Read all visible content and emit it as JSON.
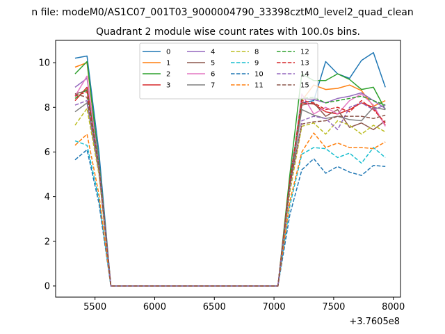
{
  "chart_data": {
    "type": "line",
    "suptitle": "n file: modeM0/AS1C07_001T03_9000004790_33398cztM0_level2_quad_clean",
    "title": "Quadrant 2 module wise count rates with 100.0s bins.",
    "xlabel": "",
    "ylabel": "",
    "offset_text": "+3.7605e8",
    "xlim": [
      5170,
      8060
    ],
    "ylim": [
      -0.5,
      11
    ],
    "x_ticks": [
      5500,
      6000,
      6500,
      7000,
      7500,
      8000
    ],
    "x_tick_labels": [
      "5500",
      "6000",
      "6500",
      "7000",
      "7500",
      "8000"
    ],
    "y_ticks": [
      0,
      2,
      4,
      6,
      8,
      10
    ],
    "y_tick_labels": [
      "0",
      "2",
      "4",
      "6",
      "8",
      "10"
    ],
    "grid": false,
    "legend_position": "upper center",
    "x": [
      5333,
      5433,
      5533,
      5633,
      5733,
      5833,
      5933,
      6033,
      6133,
      6233,
      6333,
      6433,
      6533,
      6633,
      6733,
      6833,
      6933,
      7033,
      7133,
      7233,
      7333,
      7433,
      7533,
      7633,
      7733,
      7833,
      7933
    ],
    "series": [
      {
        "name": "0",
        "color": "#1f77b4",
        "dash": "solid",
        "values": [
          10.2,
          10.3,
          6.0,
          0,
          0,
          0,
          0,
          0,
          0,
          0,
          0,
          0,
          0,
          0,
          0,
          0,
          0,
          0,
          4.8,
          8.2,
          8.3,
          10.05,
          9.5,
          9.3,
          10.1,
          10.45,
          8.9
        ]
      },
      {
        "name": "1",
        "color": "#ff7f0e",
        "dash": "solid",
        "values": [
          9.8,
          10.0,
          5.5,
          0,
          0,
          0,
          0,
          0,
          0,
          0,
          0,
          0,
          0,
          0,
          0,
          0,
          0,
          0,
          4.6,
          8.3,
          9.0,
          8.8,
          8.85,
          9.0,
          8.75,
          8.05,
          8.3
        ]
      },
      {
        "name": "2",
        "color": "#2ca02c",
        "dash": "solid",
        "values": [
          9.5,
          10.05,
          5.6,
          0,
          0,
          0,
          0,
          0,
          0,
          0,
          0,
          0,
          0,
          0,
          0,
          0,
          0,
          0,
          5.0,
          9.5,
          9.2,
          9.2,
          9.5,
          9.25,
          8.8,
          8.9,
          7.9
        ]
      },
      {
        "name": "3",
        "color": "#d62728",
        "dash": "solid",
        "values": [
          8.3,
          8.9,
          5.4,
          0,
          0,
          0,
          0,
          0,
          0,
          0,
          0,
          0,
          0,
          0,
          0,
          0,
          0,
          0,
          4.7,
          8.2,
          8.15,
          7.8,
          7.7,
          7.9,
          8.2,
          8.0,
          7.2
        ]
      },
      {
        "name": "4",
        "color": "#9467bd",
        "dash": "solid",
        "values": [
          8.9,
          9.3,
          5.5,
          0,
          0,
          0,
          0,
          0,
          0,
          0,
          0,
          0,
          0,
          0,
          0,
          0,
          0,
          0,
          4.6,
          8.4,
          8.35,
          8.2,
          8.4,
          8.5,
          8.65,
          8.3,
          7.95
        ]
      },
      {
        "name": "5",
        "color": "#8c564b",
        "dash": "solid",
        "values": [
          8.6,
          8.75,
          5.4,
          0,
          0,
          0,
          0,
          0,
          0,
          0,
          0,
          0,
          0,
          0,
          0,
          0,
          0,
          0,
          4.6,
          8.1,
          8.2,
          7.6,
          7.9,
          7.1,
          7.3,
          7.0,
          7.4
        ]
      },
      {
        "name": "6",
        "color": "#e377c2",
        "dash": "solid",
        "values": [
          8.5,
          9.4,
          5.3,
          0,
          0,
          0,
          0,
          0,
          0,
          0,
          0,
          0,
          0,
          0,
          0,
          0,
          0,
          0,
          4.5,
          8.6,
          7.7,
          8.0,
          7.7,
          8.3,
          8.6,
          8.1,
          7.15
        ]
      },
      {
        "name": "7",
        "color": "#7f7f7f",
        "dash": "solid",
        "values": [
          7.8,
          8.2,
          5.1,
          0,
          0,
          0,
          0,
          0,
          0,
          0,
          0,
          0,
          0,
          0,
          0,
          0,
          0,
          0,
          4.5,
          7.9,
          7.65,
          7.5,
          7.6,
          7.45,
          7.4,
          8.0,
          7.9
        ]
      },
      {
        "name": "8",
        "color": "#bcbd22",
        "dash": "dashed",
        "values": [
          7.2,
          7.95,
          5.0,
          0,
          0,
          0,
          0,
          0,
          0,
          0,
          0,
          0,
          0,
          0,
          0,
          0,
          0,
          0,
          4.2,
          7.15,
          7.3,
          6.8,
          7.4,
          7.2,
          6.8,
          7.2,
          6.9
        ]
      },
      {
        "name": "9",
        "color": "#17becf",
        "dash": "dashed",
        "values": [
          6.5,
          6.3,
          3.9,
          0,
          0,
          0,
          0,
          0,
          0,
          0,
          0,
          0,
          0,
          0,
          0,
          0,
          0,
          0,
          3.6,
          5.9,
          6.2,
          6.15,
          5.75,
          5.95,
          5.5,
          6.2,
          5.75
        ]
      },
      {
        "name": "10",
        "color": "#1f77b4",
        "dash": "dashed",
        "values": [
          5.65,
          6.1,
          3.7,
          0,
          0,
          0,
          0,
          0,
          0,
          0,
          0,
          0,
          0,
          0,
          0,
          0,
          0,
          0,
          3.2,
          5.2,
          5.7,
          5.05,
          5.35,
          5.1,
          4.95,
          5.4,
          5.35
        ]
      },
      {
        "name": "11",
        "color": "#ff7f0e",
        "dash": "dashed",
        "values": [
          6.3,
          6.8,
          4.1,
          0,
          0,
          0,
          0,
          0,
          0,
          0,
          0,
          0,
          0,
          0,
          0,
          0,
          0,
          0,
          3.8,
          6.0,
          6.85,
          6.2,
          6.4,
          6.2,
          6.2,
          6.15,
          6.45
        ]
      },
      {
        "name": "12",
        "color": "#2ca02c",
        "dash": "dashed",
        "values": [
          8.4,
          8.8,
          5.4,
          0,
          0,
          0,
          0,
          0,
          0,
          0,
          0,
          0,
          0,
          0,
          0,
          0,
          0,
          0,
          4.6,
          8.4,
          8.45,
          8.2,
          8.3,
          8.4,
          8.5,
          8.3,
          8.1
        ]
      },
      {
        "name": "13",
        "color": "#d62728",
        "dash": "dashed",
        "values": [
          8.5,
          8.7,
          5.3,
          0,
          0,
          0,
          0,
          0,
          0,
          0,
          0,
          0,
          0,
          0,
          0,
          0,
          0,
          0,
          4.7,
          8.3,
          8.2,
          7.9,
          8.0,
          7.8,
          8.3,
          7.9,
          7.3
        ]
      },
      {
        "name": "14",
        "color": "#9467bd",
        "dash": "dashed",
        "values": [
          8.1,
          8.3,
          5.2,
          0,
          0,
          0,
          0,
          0,
          0,
          0,
          0,
          0,
          0,
          0,
          0,
          0,
          0,
          0,
          4.4,
          7.4,
          7.6,
          7.5,
          7.0,
          8.0,
          8.2,
          7.9,
          8.1
        ]
      },
      {
        "name": "15",
        "color": "#8c564b",
        "dash": "dashed",
        "values": [
          8.6,
          8.45,
          5.3,
          0,
          0,
          0,
          0,
          0,
          0,
          0,
          0,
          0,
          0,
          0,
          0,
          0,
          0,
          0,
          4.5,
          7.25,
          7.35,
          7.4,
          7.6,
          7.6,
          7.6,
          7.5,
          7.65
        ]
      }
    ]
  }
}
